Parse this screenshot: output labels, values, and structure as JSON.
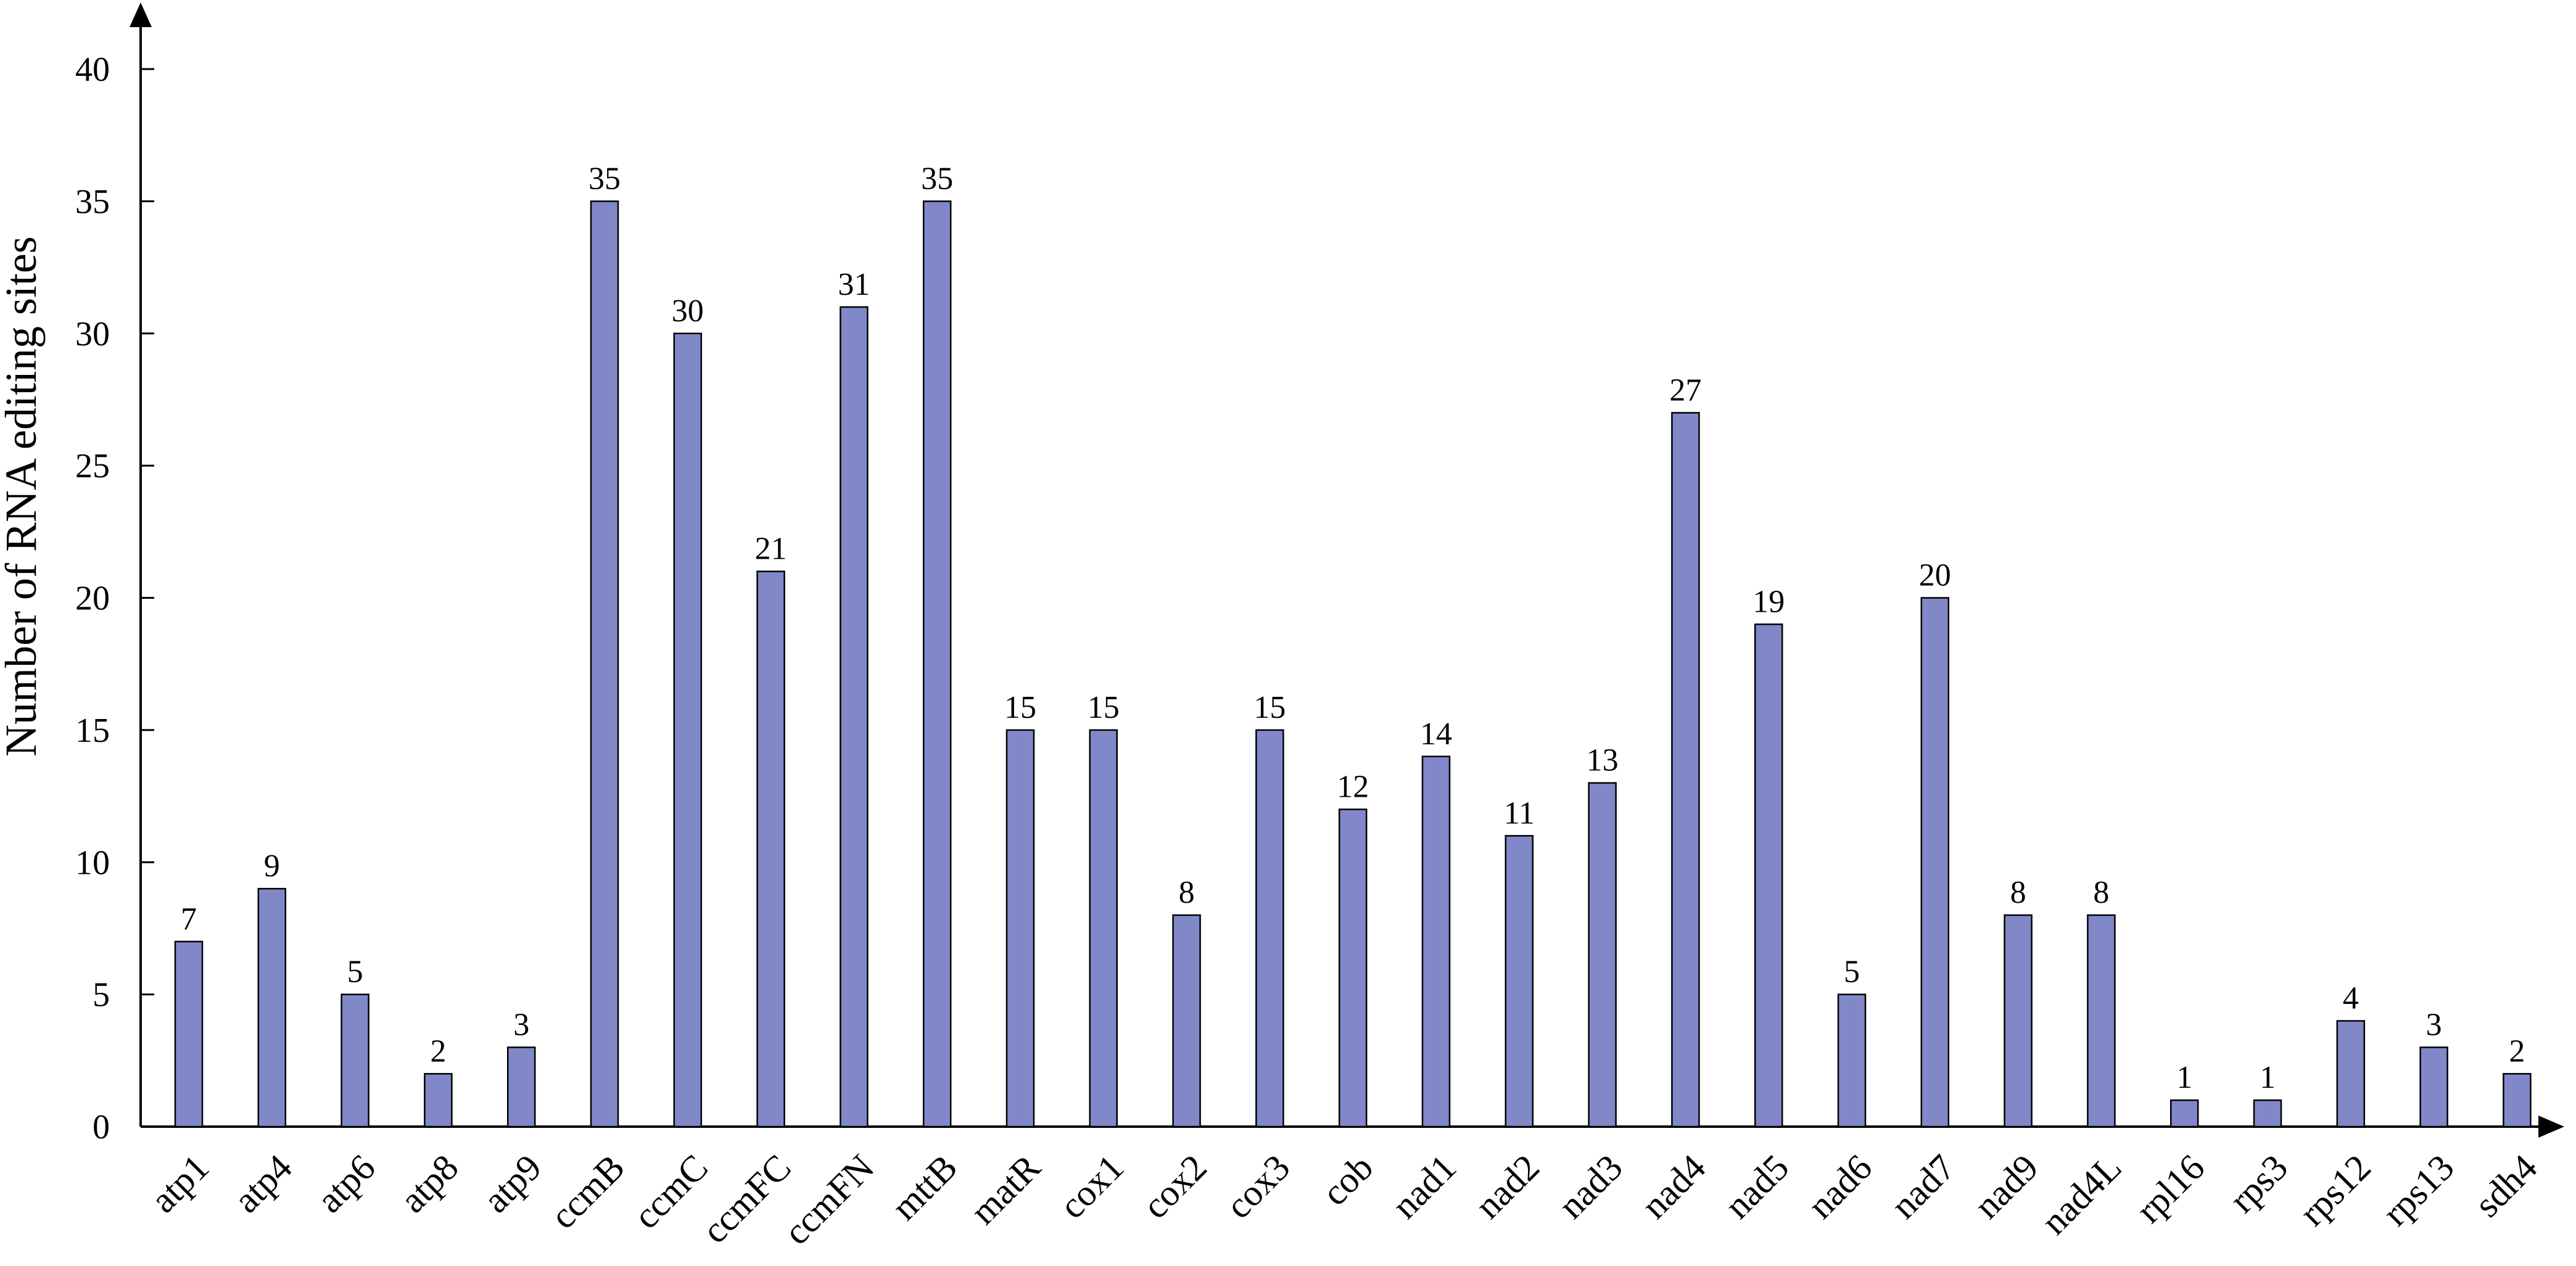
{
  "chart_data": {
    "type": "bar",
    "title": "",
    "xlabel": "",
    "ylabel": "Number of RNA editing sites",
    "ylim": [
      0,
      40
    ],
    "y_ticks": [
      0,
      5,
      10,
      15,
      20,
      25,
      30,
      35,
      40
    ],
    "y_tick_labels": [
      "0",
      "5",
      "10",
      "15",
      "20",
      "25",
      "30",
      "35",
      "40"
    ],
    "grid": false,
    "legend": "none",
    "bar_color": "#8088c8",
    "bar_edge_color": "#000000",
    "categories": [
      "atp1",
      "atp4",
      "atp6",
      "atp8",
      "atp9",
      "ccmB",
      "ccmC",
      "ccmFC",
      "ccmFN",
      "mttB",
      "matR",
      "cox1",
      "cox2",
      "cox3",
      "cob",
      "nad1",
      "nad2",
      "nad3",
      "nad4",
      "nad5",
      "nad6",
      "nad7",
      "nad9",
      "nad4L",
      "rpl16",
      "rps3",
      "rps12",
      "rps13",
      "sdh4"
    ],
    "values": [
      7,
      9,
      5,
      2,
      3,
      35,
      30,
      21,
      31,
      35,
      15,
      15,
      8,
      15,
      12,
      14,
      11,
      13,
      27,
      19,
      5,
      20,
      8,
      8,
      1,
      1,
      4,
      3,
      2
    ],
    "value_labels": [
      "7",
      "9",
      "5",
      "2",
      "3",
      "35",
      "30",
      "21",
      "31",
      "35",
      "15",
      "15",
      "8",
      "15",
      "12",
      "14",
      "11",
      "13",
      "27",
      "19",
      "5",
      "20",
      "8",
      "8",
      "1",
      "1",
      "4",
      "3",
      "2"
    ]
  }
}
